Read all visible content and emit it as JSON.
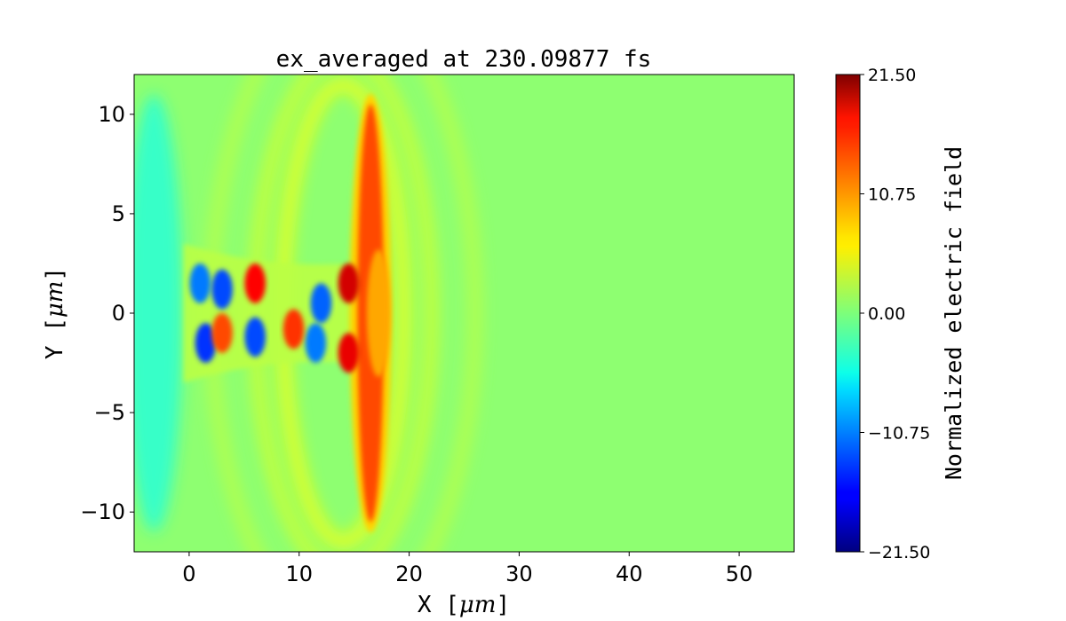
{
  "chart_data": {
    "type": "heatmap",
    "title": "ex_averaged at 230.09877 fs",
    "xlabel": {
      "prefix": "X [",
      "math": "μm",
      "suffix": "]"
    },
    "ylabel": {
      "prefix": "Y [",
      "math": "μm",
      "suffix": "]"
    },
    "xlim": [
      -5,
      55
    ],
    "ylim": [
      -12,
      12
    ],
    "xticks": [
      0,
      10,
      20,
      30,
      40,
      50
    ],
    "xtick_labels": [
      "0",
      "10",
      "20",
      "30",
      "40",
      "50"
    ],
    "yticks": [
      -10,
      -5,
      0,
      5,
      10
    ],
    "ytick_labels": [
      "−10",
      "−5",
      "0",
      "5",
      "10"
    ],
    "colormap": "jet",
    "colorbar": {
      "label": "Normalized electric field",
      "range": [
        -21.5,
        21.5
      ],
      "ticks": [
        -21.5,
        -10.75,
        0,
        10.75,
        21.5
      ],
      "tick_labels": [
        "−21.50",
        "−10.75",
        "0.00",
        "10.75",
        "21.50"
      ]
    },
    "background_value": 0.6,
    "features": [
      {
        "kind": "front",
        "x": 16.5,
        "value": 13,
        "half_width_x": 1.2,
        "half_height_y": 10.5,
        "desc_value": "peak"
      },
      {
        "kind": "blob",
        "x": 1.0,
        "y": 1.5,
        "value": -11
      },
      {
        "kind": "blob",
        "x": 3.0,
        "y": 1.2,
        "value": -13
      },
      {
        "kind": "blob",
        "x": 1.5,
        "y": -1.5,
        "value": -14
      },
      {
        "kind": "blob",
        "x": 6.0,
        "y": -1.2,
        "value": -13
      },
      {
        "kind": "blob",
        "x": 12.0,
        "y": 0.5,
        "value": -12
      },
      {
        "kind": "blob",
        "x": 11.5,
        "y": -1.5,
        "value": -11
      },
      {
        "kind": "blob",
        "x": 6.0,
        "y": 1.5,
        "value": 16
      },
      {
        "kind": "blob",
        "x": 3.0,
        "y": -1.0,
        "value": 13
      },
      {
        "kind": "blob",
        "x": 9.5,
        "y": -0.8,
        "value": 14
      },
      {
        "kind": "blob",
        "x": 14.5,
        "y": 1.5,
        "value": 18
      },
      {
        "kind": "blob",
        "x": 14.5,
        "y": -2.0,
        "value": 17
      }
    ]
  }
}
